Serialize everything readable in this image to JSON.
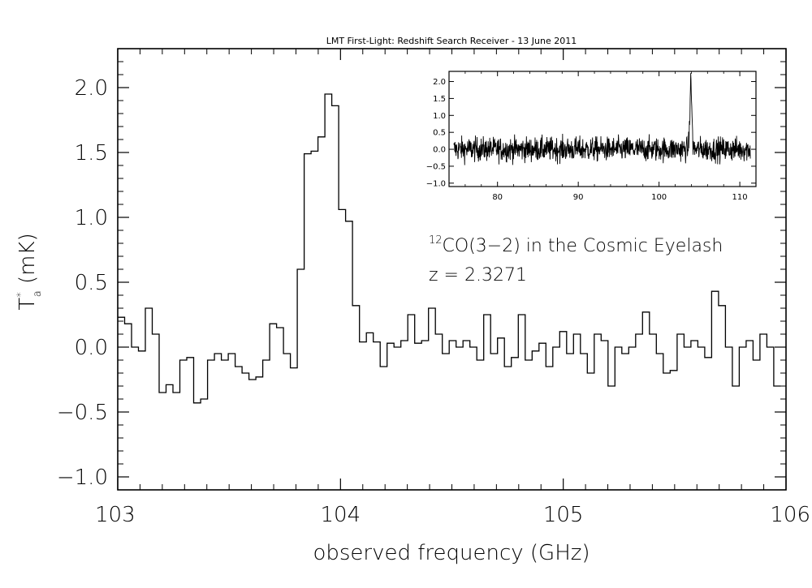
{
  "chart_data": [
    {
      "id": "main",
      "type": "line",
      "style": "step",
      "title": "LMT First-Light: Redshift Search Receiver - 13 June 2011",
      "xlabel": "observed frequency (GHz)",
      "ylabel_main": "T",
      "ylabel_sup": "*",
      "ylabel_sub": "a",
      "ylabel_unit": " (mK)",
      "xlim": [
        103,
        106
      ],
      "ylim": [
        -1.1,
        2.3
      ],
      "x_ticks": [
        103,
        104,
        105,
        106
      ],
      "x_tick_labels": [
        "103",
        "104",
        "105",
        "106"
      ],
      "y_ticks": [
        -1.0,
        -0.5,
        0.0,
        0.5,
        1.0,
        1.5,
        2.0
      ],
      "y_tick_labels": [
        "−1.0",
        "−0.5",
        "0.0",
        "0.5",
        "1.0",
        "1.5",
        "2.0"
      ],
      "annotation": {
        "sup": "12",
        "line1": "CO(3−2) in the Cosmic Eyelash",
        "line2": "z = 2.3271"
      },
      "series": [
        {
          "x_start": 103.0,
          "x_step": 0.031,
          "values": [
            0.23,
            0.18,
            0.0,
            -0.03,
            0.3,
            0.1,
            -0.35,
            -0.29,
            -0.35,
            -0.1,
            -0.08,
            -0.43,
            -0.4,
            -0.1,
            -0.05,
            -0.1,
            -0.05,
            -0.15,
            -0.2,
            -0.25,
            -0.23,
            -0.1,
            0.18,
            0.15,
            -0.05,
            -0.16,
            0.6,
            1.49,
            1.51,
            1.62,
            1.95,
            1.86,
            1.06,
            0.97,
            0.32,
            0.04,
            0.11,
            0.04,
            -0.15,
            0.03,
            0.0,
            0.05,
            0.25,
            0.03,
            0.05,
            0.3,
            0.1,
            -0.05,
            0.05,
            0.0,
            0.05,
            0.0,
            -0.1,
            0.25,
            -0.05,
            0.07,
            -0.15,
            -0.08,
            0.25,
            -0.1,
            -0.03,
            0.03,
            -0.15,
            0.0,
            0.12,
            -0.05,
            0.1,
            -0.05,
            -0.2,
            0.1,
            0.05,
            -0.3,
            0.0,
            -0.05,
            0.0,
            0.1,
            0.27,
            0.1,
            -0.05,
            -0.2,
            -0.18,
            0.1,
            0.0,
            0.05,
            0.0,
            -0.08,
            0.43,
            0.32,
            0.0,
            -0.3,
            0.0,
            0.05,
            -0.1,
            0.1,
            0.0,
            -0.3
          ]
        }
      ]
    },
    {
      "id": "inset",
      "type": "line",
      "xlim": [
        74,
        112
      ],
      "ylim": [
        -1.1,
        2.3
      ],
      "x_ticks": [
        80,
        90,
        100,
        110
      ],
      "x_tick_labels": [
        "80",
        "90",
        "100",
        "110"
      ],
      "y_ticks": [
        -1.0,
        -0.5,
        0.0,
        0.5,
        1.0,
        1.5,
        2.0
      ],
      "y_tick_labels": [
        "−1.0",
        "−0.5",
        "0.0",
        "0.5",
        "1.0",
        "1.5",
        "2.0"
      ],
      "series": [
        {
          "x_range": [
            74.6,
            111.3
          ],
          "n_points": 1100,
          "noise_sigma": 0.18,
          "line_center": 103.94,
          "line_peak": 1.95,
          "line_width": 0.12
        }
      ]
    }
  ]
}
